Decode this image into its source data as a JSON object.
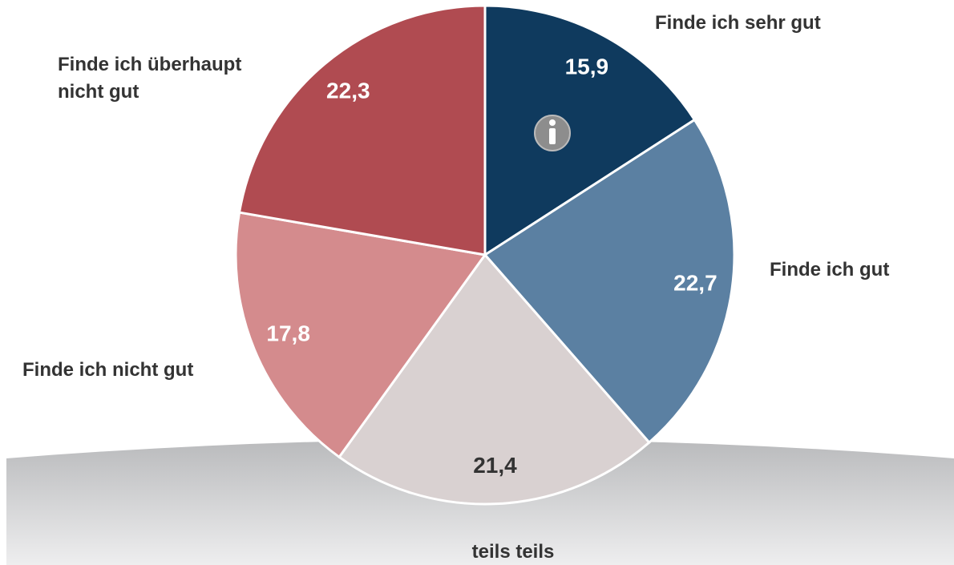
{
  "chart_data": {
    "type": "pie",
    "categories": [
      "Finde ich sehr gut",
      "Finde ich gut",
      "teils teils",
      "Finde ich nicht gut",
      "Finde ich überhaupt nicht gut"
    ],
    "values": [
      15.9,
      22.7,
      21.4,
      17.8,
      22.3
    ],
    "value_labels": [
      "15,9",
      "22,7",
      "21,4",
      "17,8",
      "22,3"
    ],
    "colors": [
      "#0f3a5e",
      "#5b80a2",
      "#d9d1d1",
      "#d48b8d",
      "#b04b51"
    ]
  }
}
